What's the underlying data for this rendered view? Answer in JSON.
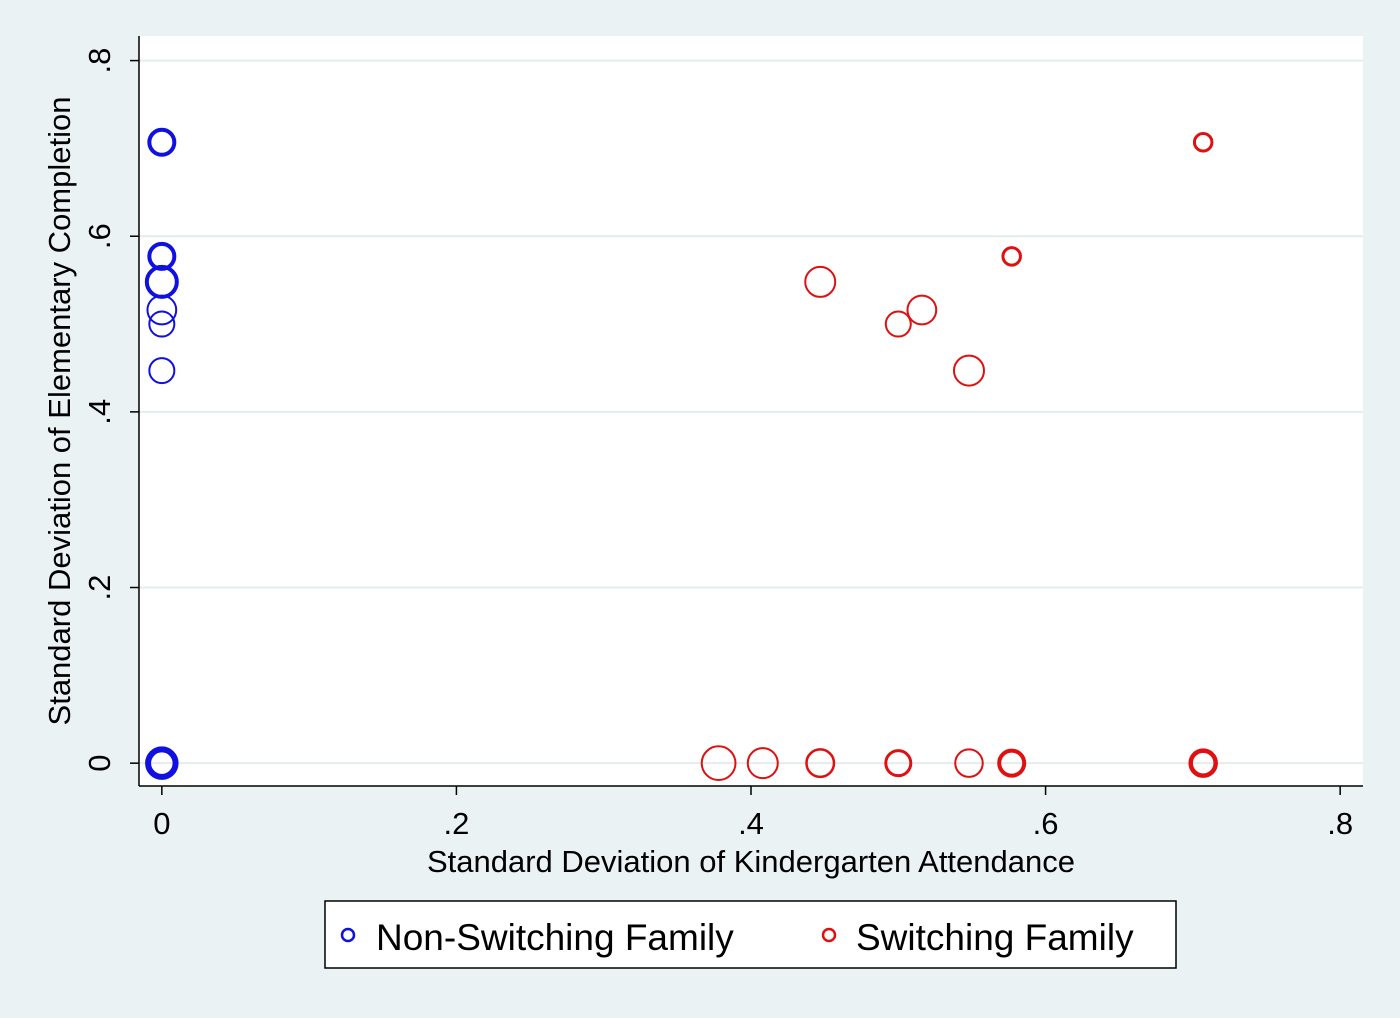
{
  "chart_data": {
    "type": "scatter",
    "xlabel": "Standard Deviation of Kindergarten Attendance",
    "ylabel": "Standard Deviation of Elementary Completion",
    "xlim": [
      -0.0155,
      0.8155
    ],
    "ylim": [
      -0.026,
      0.828
    ],
    "xticks": [
      0,
      0.2,
      0.4,
      0.6,
      0.8
    ],
    "xtick_labels": [
      "0",
      ".2",
      ".4",
      ".6",
      ".8"
    ],
    "yticks": [
      0,
      0.2,
      0.4,
      0.6,
      0.8
    ],
    "ytick_labels": [
      "0",
      ".2",
      ".4",
      ".6",
      ".8"
    ],
    "grid": "horizontal",
    "legend_position": "bottom",
    "marker_size_note": "marker size and ring thickness reflect the number of observations (weighted markers)",
    "series": [
      {
        "name": "Non-Switching Family",
        "color": "#1010e0",
        "points": [
          {
            "x": 0,
            "y": 0.707,
            "size": 1.0,
            "weight": 4
          },
          {
            "x": 0,
            "y": 0.577,
            "size": 1.0,
            "weight": 4
          },
          {
            "x": 0,
            "y": 0.548,
            "size": 1.2,
            "weight": 4
          },
          {
            "x": 0,
            "y": 0.516,
            "size": 1.15,
            "weight": 2
          },
          {
            "x": 0,
            "y": 0.5,
            "size": 1.0,
            "weight": 2
          },
          {
            "x": 0,
            "y": 0.447,
            "size": 1.0,
            "weight": 2
          },
          {
            "x": 0,
            "y": 0,
            "size": 1.1,
            "weight": 6
          }
        ]
      },
      {
        "name": "Switching Family",
        "color": "#e01010",
        "points": [
          {
            "x": 0.707,
            "y": 0.707,
            "size": 0.7,
            "weight": 3
          },
          {
            "x": 0.577,
            "y": 0.577,
            "size": 0.7,
            "weight": 3
          },
          {
            "x": 0.447,
            "y": 0.548,
            "size": 1.2,
            "weight": 2
          },
          {
            "x": 0.5,
            "y": 0.5,
            "size": 1.0,
            "weight": 2
          },
          {
            "x": 0.516,
            "y": 0.516,
            "size": 1.15,
            "weight": 2
          },
          {
            "x": 0.548,
            "y": 0.447,
            "size": 1.2,
            "weight": 2
          },
          {
            "x": 0.378,
            "y": 0,
            "size": 1.35,
            "weight": 2
          },
          {
            "x": 0.408,
            "y": 0,
            "size": 1.2,
            "weight": 2
          },
          {
            "x": 0.447,
            "y": 0,
            "size": 1.1,
            "weight": 2.5
          },
          {
            "x": 0.5,
            "y": 0,
            "size": 1.0,
            "weight": 3
          },
          {
            "x": 0.548,
            "y": 0,
            "size": 1.1,
            "weight": 2
          },
          {
            "x": 0.577,
            "y": 0,
            "size": 1.0,
            "weight": 4
          },
          {
            "x": 0.707,
            "y": 0,
            "size": 1.0,
            "weight": 4.5
          }
        ]
      }
    ]
  }
}
